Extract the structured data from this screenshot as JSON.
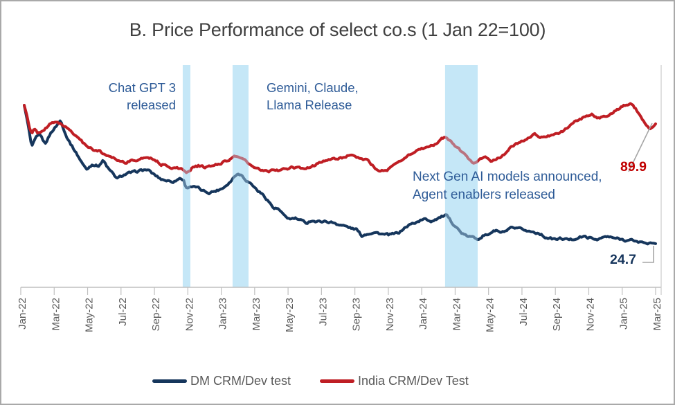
{
  "title": "B. Price Performance of select co.s (1 Jan 22=100)",
  "colors": {
    "title_text": "#404040",
    "axis_text": "#595959",
    "annotation_text": "#2e5b97",
    "axis_line": "#bfbfbf",
    "leader_line": "#a6a6a6",
    "dm_navy": "#16365c",
    "india_red": "#bf1e24",
    "india_label": "#c00000",
    "dm_label": "#17365d",
    "band_base": "#d6f0fb",
    "band_overlay": "rgba(178,220,242,0.45)"
  },
  "annotations": {
    "chatgpt": {
      "line1": "Chat GPT 3",
      "line2": "released"
    },
    "gemini": {
      "line1": "Gemini, Claude,",
      "line2": "Llama Release"
    },
    "nextgen": {
      "line1": "Next Gen AI models announced,",
      "line2": "Agent enablers released"
    }
  },
  "end_labels": {
    "india": "89.9",
    "dm": "24.7"
  },
  "legend": [
    {
      "label": "DM CRM/Dev test",
      "color": "#16365c"
    },
    {
      "label": "India CRM/Dev Test",
      "color": "#bf1e24"
    }
  ],
  "chart_data": {
    "type": "line",
    "title": "B. Price Performance of select co.s (1 Jan 22=100)",
    "x_unit": "months since Jan-2022 (0 = Jan-22, 38 = Mar-25)",
    "x_tick_labels": [
      "Jan-22",
      "Mar-22",
      "May-22",
      "Jul-22",
      "Sep-22",
      "Nov-22",
      "Jan-23",
      "Mar-23",
      "May-23",
      "Jul-23",
      "Sep-23",
      "Nov-23",
      "Jan-24",
      "Mar-24",
      "May-24",
      "Jul-24",
      "Sep-24",
      "Nov-24",
      "Jan-25",
      "Mar-25"
    ],
    "ylim": [
      0,
      122
    ],
    "grid": false,
    "legend_position": "bottom",
    "event_bands": [
      {
        "label": "Chat GPT 3 released",
        "from_m": 9.54,
        "to_m": 10.0
      },
      {
        "label": "Gemini, Claude, Llama Release",
        "from_m": 12.54,
        "to_m": 13.5
      },
      {
        "label": "Next Gen AI models announced, Agent enablers released",
        "from_m": 25.33,
        "to_m": 27.29
      }
    ],
    "series": [
      {
        "name": "DM CRM/Dev test",
        "color": "#16365c",
        "end_label": "24.7",
        "points": [
          [
            0,
            100
          ],
          [
            0.2,
            91
          ],
          [
            0.45,
            77
          ],
          [
            0.7,
            82
          ],
          [
            0.95,
            84
          ],
          [
            1.25,
            79
          ],
          [
            1.6,
            85
          ],
          [
            1.95,
            89
          ],
          [
            2.2,
            92
          ],
          [
            2.5,
            84
          ],
          [
            2.8,
            79
          ],
          [
            3.2,
            73
          ],
          [
            3.6,
            67
          ],
          [
            3.75,
            65
          ],
          [
            4.1,
            68
          ],
          [
            4.45,
            67
          ],
          [
            4.75,
            70
          ],
          [
            5.1,
            65
          ],
          [
            5.3,
            63
          ],
          [
            5.6,
            60
          ],
          [
            5.95,
            62
          ],
          [
            6.25,
            63
          ],
          [
            6.6,
            63.5
          ],
          [
            7,
            64.5
          ],
          [
            7.4,
            65
          ],
          [
            7.7,
            63
          ],
          [
            8.2,
            60
          ],
          [
            8.6,
            59
          ],
          [
            9,
            58.5
          ],
          [
            9.4,
            60.5
          ],
          [
            9.6,
            59
          ],
          [
            9.75,
            55
          ],
          [
            10,
            56
          ],
          [
            10.45,
            55
          ],
          [
            10.7,
            53.5
          ],
          [
            11.1,
            52.5
          ],
          [
            11.55,
            53.5
          ],
          [
            11.95,
            55
          ],
          [
            12.4,
            58.5
          ],
          [
            12.8,
            63
          ],
          [
            13.1,
            62
          ],
          [
            13.4,
            59
          ],
          [
            13.7,
            57
          ],
          [
            14,
            54
          ],
          [
            14.4,
            51
          ],
          [
            14.7,
            48
          ],
          [
            15,
            44
          ],
          [
            15.3,
            43.5
          ],
          [
            15.6,
            40
          ],
          [
            16,
            38
          ],
          [
            16.3,
            38.5
          ],
          [
            16.7,
            37
          ],
          [
            17,
            36
          ],
          [
            17.3,
            37.5
          ],
          [
            17.6,
            36.5
          ],
          [
            18,
            37
          ],
          [
            18.35,
            36.5
          ],
          [
            18.65,
            36
          ],
          [
            19,
            35
          ],
          [
            19.4,
            34
          ],
          [
            19.7,
            33
          ],
          [
            20,
            32.5
          ],
          [
            20.3,
            29
          ],
          [
            20.6,
            30
          ],
          [
            21,
            31
          ],
          [
            21.3,
            30.5
          ],
          [
            21.7,
            29.5
          ],
          [
            22,
            29.5
          ],
          [
            22.3,
            30
          ],
          [
            22.6,
            31
          ],
          [
            22.85,
            33
          ],
          [
            23.2,
            35
          ],
          [
            23.5,
            36
          ],
          [
            23.85,
            37.5
          ],
          [
            24.15,
            38
          ],
          [
            24.5,
            37
          ],
          [
            24.85,
            38.5
          ],
          [
            25.15,
            39.5
          ],
          [
            25.4,
            40
          ],
          [
            25.7,
            36.5
          ],
          [
            26,
            34
          ],
          [
            26.25,
            31
          ],
          [
            26.55,
            29
          ],
          [
            26.8,
            28.5
          ],
          [
            27,
            28
          ],
          [
            27.3,
            27.5
          ],
          [
            27.6,
            29
          ],
          [
            27.9,
            29.5
          ],
          [
            28.1,
            31
          ],
          [
            28.4,
            32
          ],
          [
            28.7,
            30.5
          ],
          [
            29,
            31.5
          ],
          [
            29.3,
            33
          ],
          [
            29.65,
            32.5
          ],
          [
            30,
            32.5
          ],
          [
            30.3,
            31.5
          ],
          [
            30.65,
            31
          ],
          [
            31,
            30.5
          ],
          [
            31.3,
            28.5
          ],
          [
            31.65,
            27.5
          ],
          [
            32,
            27
          ],
          [
            32.3,
            27.5
          ],
          [
            32.65,
            27
          ],
          [
            33,
            27
          ],
          [
            33.3,
            28
          ],
          [
            33.65,
            28.5
          ],
          [
            34,
            28
          ],
          [
            34.3,
            27
          ],
          [
            34.65,
            27.5
          ],
          [
            35,
            28.5
          ],
          [
            35.3,
            28
          ],
          [
            35.65,
            27.5
          ],
          [
            36,
            27
          ],
          [
            36.3,
            26.5
          ],
          [
            36.65,
            26.5
          ],
          [
            37,
            25.5
          ],
          [
            37.3,
            25.5
          ],
          [
            37.65,
            25
          ],
          [
            38,
            24.7
          ]
        ]
      },
      {
        "name": "India CRM/Dev Test",
        "color": "#bf1e24",
        "end_label": "89.9",
        "points": [
          [
            0,
            100
          ],
          [
            0.15,
            95
          ],
          [
            0.3,
            88
          ],
          [
            0.45,
            84
          ],
          [
            0.6,
            87
          ],
          [
            0.8,
            85
          ],
          [
            1,
            85
          ],
          [
            1.3,
            88
          ],
          [
            1.6,
            90
          ],
          [
            2,
            91
          ],
          [
            2.2,
            90
          ],
          [
            2.5,
            88
          ],
          [
            2.8,
            86
          ],
          [
            3.2,
            83
          ],
          [
            3.6,
            79
          ],
          [
            4,
            77
          ],
          [
            4.3,
            75
          ],
          [
            4.5,
            75.5
          ],
          [
            4.85,
            73
          ],
          [
            5.3,
            72
          ],
          [
            5.7,
            70
          ],
          [
            6.1,
            69
          ],
          [
            6.5,
            70
          ],
          [
            7,
            70.5
          ],
          [
            7.4,
            72
          ],
          [
            7.8,
            71
          ],
          [
            8.2,
            68
          ],
          [
            8.6,
            67
          ],
          [
            9,
            66
          ],
          [
            9.5,
            65.5
          ],
          [
            9.75,
            63
          ],
          [
            10.1,
            66
          ],
          [
            10.5,
            67
          ],
          [
            10.9,
            66
          ],
          [
            11.3,
            67
          ],
          [
            11.75,
            68
          ],
          [
            12.15,
            70
          ],
          [
            12.7,
            72
          ],
          [
            13,
            72
          ],
          [
            13.4,
            69
          ],
          [
            13.8,
            66
          ],
          [
            14.4,
            64
          ],
          [
            15.1,
            64.5
          ],
          [
            15.7,
            65
          ],
          [
            16.1,
            66
          ],
          [
            16.75,
            65.5
          ],
          [
            17.4,
            67
          ],
          [
            18,
            70
          ],
          [
            18.6,
            70.5
          ],
          [
            19.1,
            71.5
          ],
          [
            19.45,
            72.5
          ],
          [
            20.1,
            71.5
          ],
          [
            20.7,
            70
          ],
          [
            21.3,
            64
          ],
          [
            21.9,
            65
          ],
          [
            22.5,
            69
          ],
          [
            23,
            72
          ],
          [
            23.6,
            75.5
          ],
          [
            24.3,
            77
          ],
          [
            24.8,
            79
          ],
          [
            25.1,
            82
          ],
          [
            25.4,
            83
          ],
          [
            25.8,
            79
          ],
          [
            26.2,
            76
          ],
          [
            26.6,
            72
          ],
          [
            27,
            69
          ],
          [
            27.3,
            70
          ],
          [
            27.8,
            72
          ],
          [
            28.1,
            69
          ],
          [
            28.5,
            71
          ],
          [
            29,
            74
          ],
          [
            29.4,
            78
          ],
          [
            29.8,
            80
          ],
          [
            30.3,
            82
          ],
          [
            30.7,
            84
          ],
          [
            31.1,
            83
          ],
          [
            31.5,
            83.5
          ],
          [
            32,
            84
          ],
          [
            32.4,
            86
          ],
          [
            32.9,
            89
          ],
          [
            33.3,
            92
          ],
          [
            33.8,
            94
          ],
          [
            34.2,
            95
          ],
          [
            34.6,
            93
          ],
          [
            35,
            94
          ],
          [
            35.4,
            96
          ],
          [
            35.8,
            98
          ],
          [
            36.1,
            100
          ],
          [
            36.5,
            101
          ],
          [
            36.8,
            98
          ],
          [
            37.1,
            94
          ],
          [
            37.4,
            90
          ],
          [
            37.7,
            87
          ],
          [
            38,
            89.9
          ]
        ]
      }
    ]
  }
}
